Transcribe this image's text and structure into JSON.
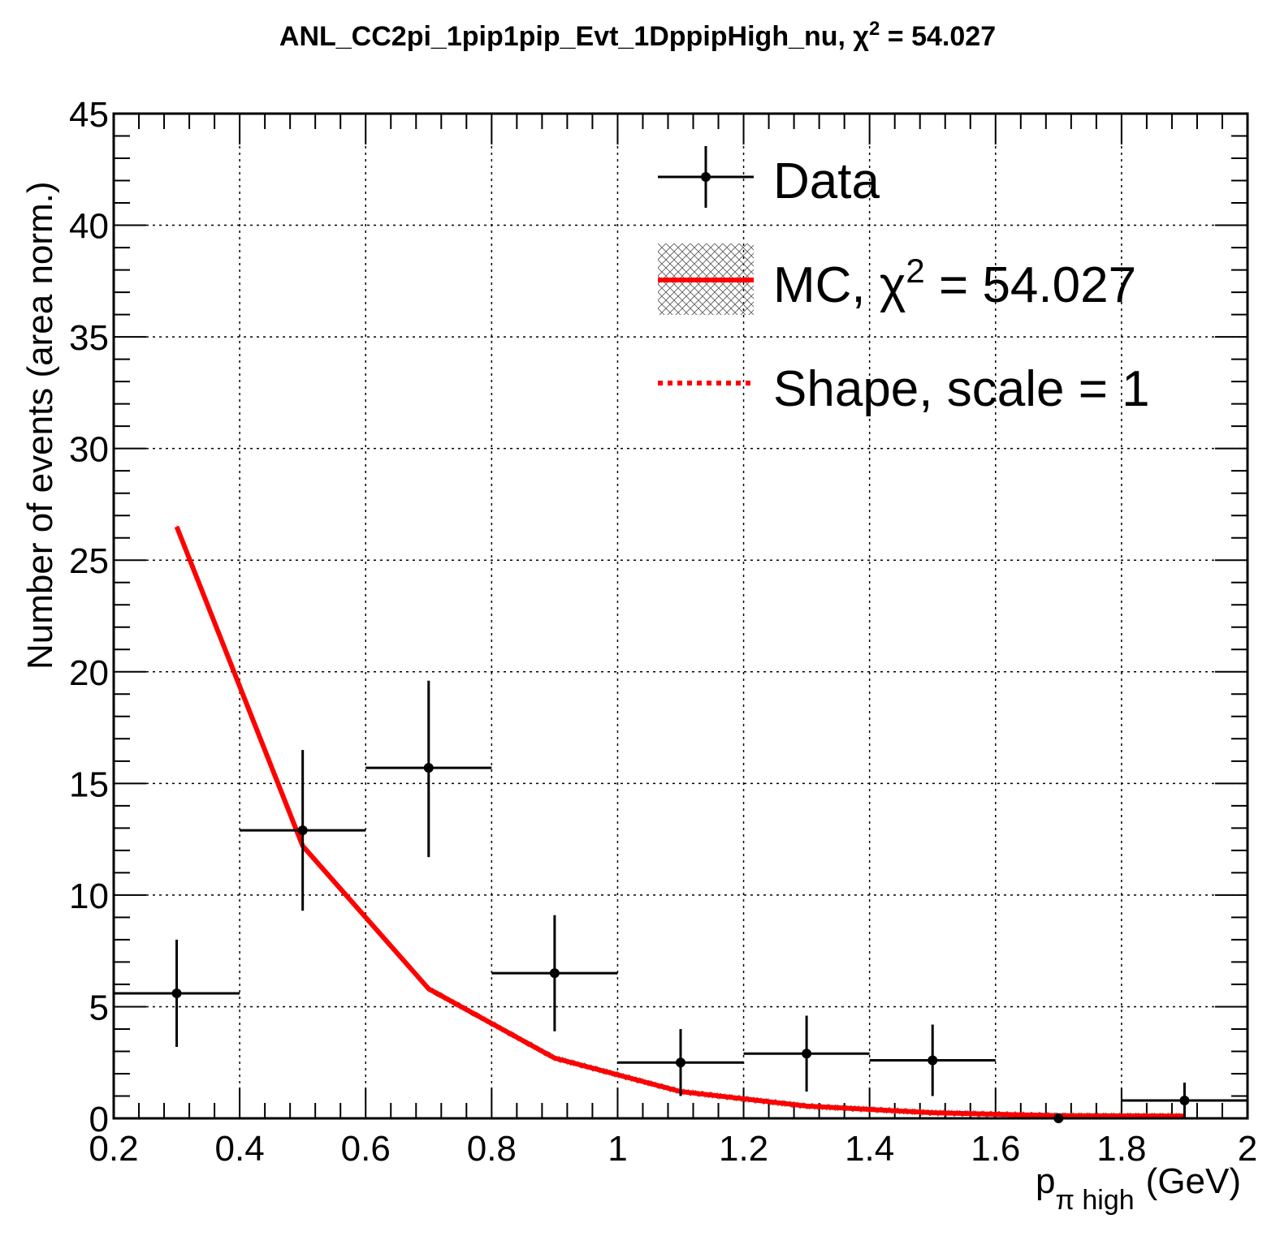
{
  "chart_data": {
    "type": "line",
    "title": "ANL_CC2pi_1pip1pip_Evt_1DppipHigh_nu, χ² = 54.027",
    "title_main": "ANL_CC2pi_1pip1pip_Evt_1DppipHigh_nu, χ",
    "title_sup": "2",
    "title_tail": " = 54.027",
    "xlabel_main": "p",
    "xlabel_sub": "π high",
    "xlabel_unit": "(GeV)",
    "ylabel": "Number of events (area norm.)",
    "xlim": [
      0.2,
      2.0
    ],
    "ylim": [
      0,
      45
    ],
    "x_ticks": [
      0.2,
      0.4,
      0.6,
      0.8,
      1.0,
      1.2,
      1.4,
      1.6,
      1.8,
      2.0
    ],
    "x_tick_labels": [
      "0.2",
      "0.4",
      "0.6",
      "0.8",
      "1",
      "1.2",
      "1.4",
      "1.6",
      "1.8",
      "2"
    ],
    "y_ticks": [
      0,
      5,
      10,
      15,
      20,
      25,
      30,
      35,
      40,
      45
    ],
    "y_tick_labels": [
      "0",
      "5",
      "10",
      "15",
      "20",
      "25",
      "30",
      "35",
      "40",
      "45"
    ],
    "grid": true,
    "legend_position": "top-right",
    "series": [
      {
        "name": "Data",
        "style": "points-with-errors",
        "color": "#000000",
        "x": [
          0.3,
          0.5,
          0.7,
          0.9,
          1.1,
          1.3,
          1.5,
          1.7,
          1.9
        ],
        "x_low": [
          0.2,
          0.4,
          0.6,
          0.8,
          1.0,
          1.2,
          1.4,
          1.6,
          1.8
        ],
        "x_high": [
          0.4,
          0.6,
          0.8,
          1.0,
          1.2,
          1.4,
          1.6,
          1.8,
          2.0
        ],
        "y": [
          5.6,
          12.9,
          15.7,
          6.5,
          2.5,
          2.9,
          2.6,
          0.0,
          0.8
        ],
        "y_err_low": [
          2.4,
          3.6,
          4.0,
          2.6,
          1.5,
          1.7,
          1.6,
          0.0,
          0.8
        ],
        "y_err_high": [
          2.4,
          3.6,
          3.9,
          2.6,
          1.5,
          1.7,
          1.6,
          0.0,
          0.8
        ]
      },
      {
        "name": "MC",
        "style": "solid-line",
        "color": "#ff0000",
        "x": [
          0.3,
          0.5,
          0.7,
          0.9,
          1.1,
          1.3,
          1.5,
          1.7,
          1.9
        ],
        "y": [
          26.5,
          12.2,
          5.8,
          2.7,
          1.2,
          0.55,
          0.25,
          0.12,
          0.1
        ]
      },
      {
        "name": "Shape, scale = 1",
        "style": "dotted-line",
        "color": "#ff0000",
        "x": [
          0.3,
          0.5,
          0.7,
          0.9,
          1.1,
          1.3,
          1.5,
          1.7,
          1.9
        ],
        "y": [
          26.5,
          12.2,
          5.8,
          2.7,
          1.2,
          0.55,
          0.25,
          0.12,
          0.1
        ]
      }
    ],
    "legend": {
      "data_label": "Data",
      "mc_label_main": "MC, χ",
      "mc_label_sup": "2",
      "mc_label_tail": " = 54.027",
      "shape_label": "Shape, scale = 1"
    }
  }
}
